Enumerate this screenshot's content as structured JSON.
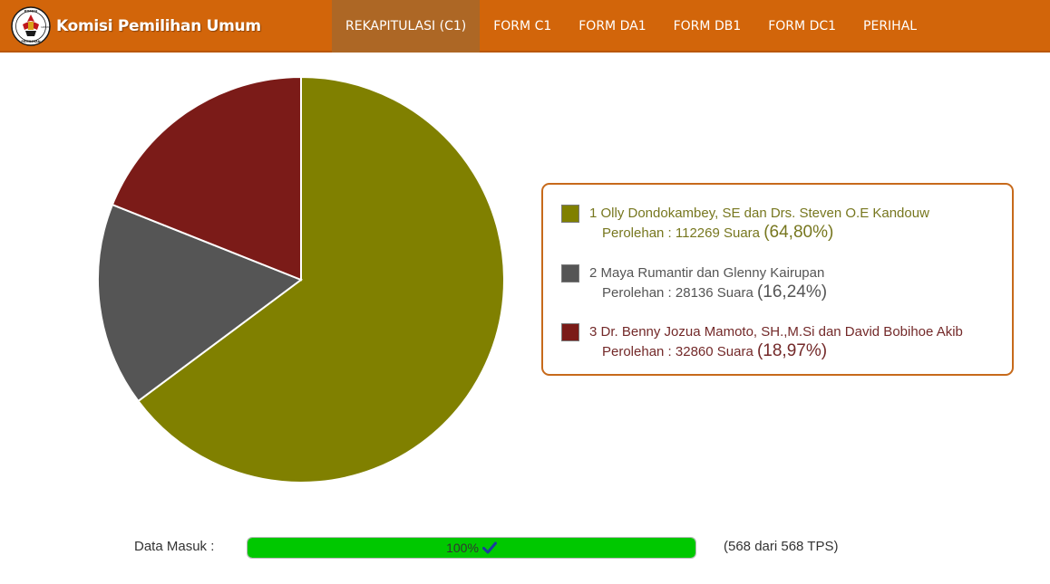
{
  "header": {
    "brand_name": "Komisi Pemilihan Umum",
    "logo_icon": "kpu-logo-icon",
    "logo_text": [
      "KOMISI",
      "PEMILIHAN",
      "UMUM"
    ],
    "nav": [
      {
        "label": "REKAPITULASI (C1)",
        "active": true
      },
      {
        "label": "FORM C1",
        "active": false
      },
      {
        "label": "FORM DA1",
        "active": false
      },
      {
        "label": "FORM DB1",
        "active": false
      },
      {
        "label": "FORM DC1",
        "active": false
      },
      {
        "label": "PERIHAL",
        "active": false
      }
    ],
    "colors": {
      "bar": "#d2650a",
      "active": "#ad6725"
    }
  },
  "chart_data": {
    "type": "pie",
    "series": [
      {
        "name": "Olly Dondokambey, SE dan Drs. Steven O.E Kandouw",
        "value": 112269,
        "percent": 64.8,
        "color": "#808000"
      },
      {
        "name": "Maya Rumantir dan Glenny Kairupan",
        "value": 28136,
        "percent": 16.24,
        "color": "#555555"
      },
      {
        "name": "Dr. Benny Jozua Mamoto, SH.,M.Si dan David Bobihoe Akib",
        "value": 32860,
        "percent": 18.97,
        "color": "#7b1b18"
      }
    ],
    "legend_placement": "right"
  },
  "legend": {
    "entries": [
      {
        "line1": "1 Olly Dondokambey, SE dan Drs. Steven O.E Kandouw",
        "line2": "Perolehan : 112269 Suara",
        "pct": "(64,80%)",
        "text_color": "#77771f"
      },
      {
        "line1": "2 Maya Rumantir dan Glenny Kairupan",
        "line2": "Perolehan : 28136 Suara",
        "pct": "(16,24%)",
        "text_color": "#555555"
      },
      {
        "line1": "3 Dr. Benny Jozua Mamoto, SH.,M.Si dan David Bobihoe Akib",
        "line2": "Perolehan : 32860 Suara",
        "pct": "(18,97%)",
        "text_color": "#732929"
      }
    ],
    "border_color": "#c76a1b"
  },
  "progress": {
    "label": "Data Masuk :",
    "percent_text": "100%",
    "fraction": 1.0,
    "check_icon": "check-icon",
    "tps": "(568 dari 568 TPS)",
    "fill_color": "#00c800",
    "check_color": "#1a3aa0"
  }
}
